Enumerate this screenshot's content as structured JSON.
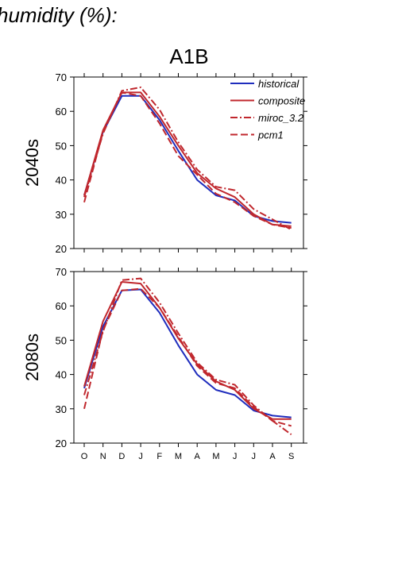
{
  "header": {
    "title": "humidity (%):",
    "scenario": "A1B"
  },
  "chart_data": {
    "type": "line",
    "categories": [
      "O",
      "N",
      "D",
      "J",
      "F",
      "M",
      "A",
      "M",
      "J",
      "J",
      "A",
      "S"
    ],
    "ylim": [
      20,
      70
    ],
    "yticks": [
      20,
      30,
      40,
      50,
      60,
      70
    ],
    "legend": {
      "placement": "top-right",
      "entries": [
        {
          "name": "historical",
          "color": "#1f2dbd",
          "dash": "solid"
        },
        {
          "name": "composite",
          "color": "#c0272d",
          "dash": "solid"
        },
        {
          "name": "miroc_3.2",
          "color": "#c0272d",
          "dash": "dashdot"
        },
        {
          "name": "pcm1",
          "color": "#c0272d",
          "dash": "dashed"
        }
      ]
    },
    "panels": [
      {
        "label": "2040s",
        "series": [
          {
            "name": "historical",
            "values": [
              35.5,
              54,
              64.5,
              64.5,
              57.5,
              48.5,
              40,
              35.5,
              34,
              29.5,
              28,
              27.5
            ]
          },
          {
            "name": "composite",
            "values": [
              35.5,
              54.5,
              65.5,
              65.5,
              58.5,
              50,
              42,
              37.5,
              35,
              30,
              27,
              26.5
            ]
          },
          {
            "name": "miroc_3.2",
            "values": [
              35,
              53.5,
              66,
              67,
              60.5,
              51,
              43,
              38,
              37,
              31.5,
              28.5,
              25.5
            ]
          },
          {
            "name": "pcm1",
            "values": [
              33.5,
              54,
              65.5,
              64.5,
              56.5,
              47,
              41.5,
              36,
              33.5,
              29.5,
              27,
              26
            ]
          }
        ]
      },
      {
        "label": "2080s",
        "series": [
          {
            "name": "historical",
            "values": [
              36,
              54,
              64.5,
              64.8,
              58,
              48.5,
              40,
              35.5,
              34,
              29.5,
              28,
              27.5
            ]
          },
          {
            "name": "composite",
            "values": [
              36.5,
              55.5,
              67,
              66.5,
              59.5,
              50.5,
              43,
              38,
              35.5,
              30,
              27,
              27
            ]
          },
          {
            "name": "miroc_3.2",
            "values": [
              34,
              52.5,
              67.5,
              68,
              61,
              52,
              43.5,
              38.5,
              37,
              31,
              26.5,
              22.5
            ]
          },
          {
            "name": "pcm1",
            "values": [
              30,
              53,
              64.5,
              65,
              59.5,
              51,
              42.5,
              37.5,
              36,
              30.5,
              26.5,
              25
            ]
          }
        ]
      }
    ]
  }
}
